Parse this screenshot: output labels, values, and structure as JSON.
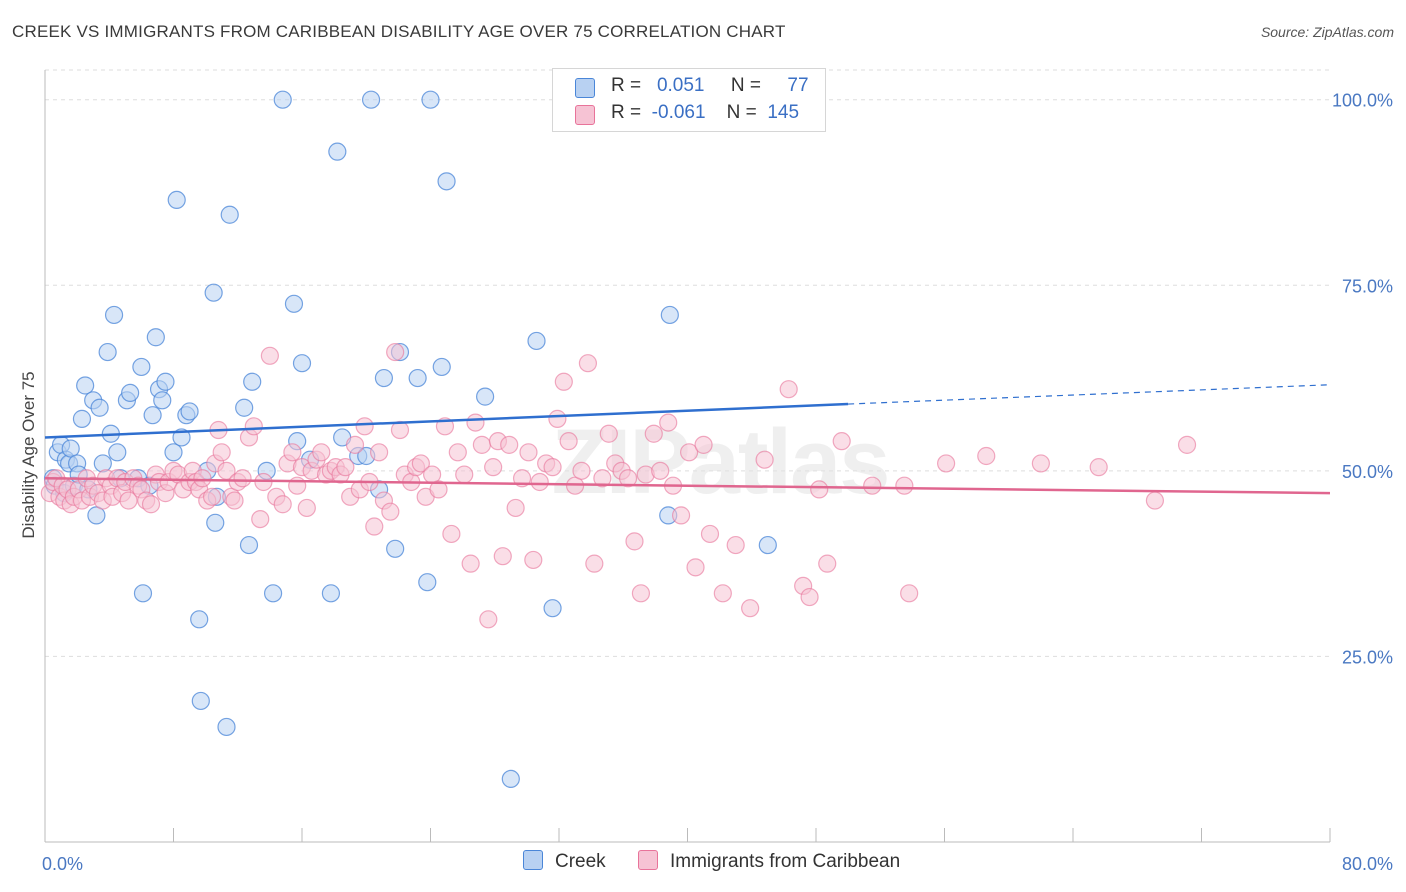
{
  "title": "CREEK VS IMMIGRANTS FROM CARIBBEAN DISABILITY AGE OVER 75 CORRELATION CHART",
  "source": "Source: ZipAtlas.com",
  "watermark": "ZIPatlas",
  "colors": {
    "creek": "#4a86d8",
    "creek_fill": "#b8d1f2",
    "caribbean": "#e8739a",
    "caribbean_fill": "#f6c3d4",
    "axis_label": "#4a78c2",
    "grid": "#dddddd"
  },
  "legend": {
    "rows": [
      {
        "r_label": "R =",
        "r_value": "0.051",
        "n_label": "N =",
        "n_value": "77"
      },
      {
        "r_label": "R =",
        "r_value": "-0.061",
        "n_label": "N =",
        "n_value": "145"
      }
    ]
  },
  "chart_data": {
    "type": "scatter",
    "title": "CREEK VS IMMIGRANTS FROM CARIBBEAN DISABILITY AGE OVER 75 CORRELATION CHART",
    "xlabel": "",
    "ylabel": "Disability Age Over 75",
    "xlim": [
      0,
      80
    ],
    "ylim": [
      0,
      104
    ],
    "x_tick_labels": [
      "0.0%",
      "80.0%"
    ],
    "y_ticks": [
      25,
      50,
      75,
      100
    ],
    "y_tick_labels": [
      "25.0%",
      "50.0%",
      "75.0%",
      "100.0%"
    ],
    "grid": "horizontal dashed",
    "legend_position": "top-center",
    "series": [
      {
        "name": "Creek",
        "r": 0.051,
        "n": 77,
        "trend": {
          "x": [
            0,
            50,
            80
          ],
          "y": [
            54.5,
            59.0,
            61.6
          ],
          "solid_until_x": 50
        },
        "points": [
          [
            0.5,
            49
          ],
          [
            0.6,
            48
          ],
          [
            0.8,
            52.5
          ],
          [
            1.0,
            53.5
          ],
          [
            1.2,
            47
          ],
          [
            1.3,
            51.5
          ],
          [
            1.5,
            51
          ],
          [
            1.6,
            53
          ],
          [
            1.8,
            48
          ],
          [
            2.0,
            51
          ],
          [
            2.1,
            49.5
          ],
          [
            2.3,
            57
          ],
          [
            2.5,
            61.5
          ],
          [
            2.7,
            47.5
          ],
          [
            3.0,
            59.5
          ],
          [
            3.2,
            44
          ],
          [
            3.4,
            58.5
          ],
          [
            3.6,
            51
          ],
          [
            3.9,
            66
          ],
          [
            4.1,
            55
          ],
          [
            4.3,
            71
          ],
          [
            4.5,
            52.5
          ],
          [
            4.7,
            49
          ],
          [
            5.1,
            59.5
          ],
          [
            5.3,
            60.5
          ],
          [
            5.8,
            49
          ],
          [
            6.0,
            64
          ],
          [
            6.1,
            33.5
          ],
          [
            6.5,
            48
          ],
          [
            6.7,
            57.5
          ],
          [
            6.9,
            68
          ],
          [
            7.1,
            61
          ],
          [
            7.3,
            59.5
          ],
          [
            7.5,
            62
          ],
          [
            8.0,
            52.5
          ],
          [
            8.2,
            86.5
          ],
          [
            8.5,
            54.5
          ],
          [
            8.8,
            57.5
          ],
          [
            9.0,
            58
          ],
          [
            9.6,
            30
          ],
          [
            9.7,
            19
          ],
          [
            10.1,
            50
          ],
          [
            10.5,
            74
          ],
          [
            10.6,
            43
          ],
          [
            10.7,
            46.5
          ],
          [
            11.3,
            15.5
          ],
          [
            11.5,
            84.5
          ],
          [
            12.4,
            58.5
          ],
          [
            12.7,
            40
          ],
          [
            12.9,
            62
          ],
          [
            13.8,
            50
          ],
          [
            14.2,
            33.5
          ],
          [
            14.8,
            100
          ],
          [
            15.5,
            72.5
          ],
          [
            15.7,
            54
          ],
          [
            16.0,
            64.5
          ],
          [
            16.5,
            51.5
          ],
          [
            17.8,
            33.5
          ],
          [
            18.2,
            93
          ],
          [
            18.5,
            54.5
          ],
          [
            19.5,
            52
          ],
          [
            20.0,
            52
          ],
          [
            20.3,
            100
          ],
          [
            20.8,
            47.5
          ],
          [
            21.1,
            62.5
          ],
          [
            21.8,
            39.5
          ],
          [
            22.1,
            66
          ],
          [
            23.2,
            62.5
          ],
          [
            23.8,
            35
          ],
          [
            24.0,
            100
          ],
          [
            24.7,
            64
          ],
          [
            25.0,
            89
          ],
          [
            27.4,
            60
          ],
          [
            29.0,
            8.5
          ],
          [
            30.6,
            67.5
          ],
          [
            31.6,
            31.5
          ],
          [
            38.8,
            44
          ],
          [
            38.9,
            71
          ],
          [
            45.0,
            40
          ]
        ]
      },
      {
        "name": "Immigrants from Caribbean",
        "r": -0.061,
        "n": 145,
        "trend": {
          "x": [
            0,
            80
          ],
          "y": [
            49.0,
            47.0
          ]
        },
        "points": [
          [
            0.3,
            47
          ],
          [
            0.5,
            48.5
          ],
          [
            0.7,
            49
          ],
          [
            0.9,
            46.5
          ],
          [
            1.1,
            48
          ],
          [
            1.2,
            46
          ],
          [
            1.4,
            47.5
          ],
          [
            1.6,
            45.5
          ],
          [
            1.8,
            46.5
          ],
          [
            2.1,
            47.5
          ],
          [
            2.3,
            46
          ],
          [
            2.6,
            49
          ],
          [
            2.8,
            46.5
          ],
          [
            3.0,
            48
          ],
          [
            3.3,
            47
          ],
          [
            3.6,
            46
          ],
          [
            3.8,
            49
          ],
          [
            4.1,
            48
          ],
          [
            4.2,
            46.5
          ],
          [
            4.5,
            49
          ],
          [
            4.8,
            47
          ],
          [
            5.0,
            48.5
          ],
          [
            5.2,
            46
          ],
          [
            5.5,
            49
          ],
          [
            5.8,
            48
          ],
          [
            6.0,
            47.5
          ],
          [
            6.3,
            46
          ],
          [
            6.6,
            45.5
          ],
          [
            6.9,
            49.5
          ],
          [
            7.1,
            48.5
          ],
          [
            7.5,
            47
          ],
          [
            7.7,
            48.5
          ],
          [
            8.0,
            50
          ],
          [
            8.3,
            49.5
          ],
          [
            8.6,
            47.5
          ],
          [
            9.0,
            48.5
          ],
          [
            9.2,
            50
          ],
          [
            9.4,
            48.5
          ],
          [
            9.6,
            47.5
          ],
          [
            9.8,
            49
          ],
          [
            10.1,
            46
          ],
          [
            10.4,
            46.5
          ],
          [
            10.6,
            51
          ],
          [
            10.8,
            55.5
          ],
          [
            11.0,
            52.5
          ],
          [
            11.3,
            50
          ],
          [
            11.6,
            46.5
          ],
          [
            11.8,
            46
          ],
          [
            12.0,
            48.5
          ],
          [
            12.3,
            49
          ],
          [
            12.7,
            54.5
          ],
          [
            13.0,
            56
          ],
          [
            13.4,
            43.5
          ],
          [
            13.6,
            48.5
          ],
          [
            14.0,
            65.5
          ],
          [
            14.4,
            46.5
          ],
          [
            14.8,
            45.5
          ],
          [
            15.1,
            51
          ],
          [
            15.4,
            52.5
          ],
          [
            15.7,
            48
          ],
          [
            16.0,
            50.5
          ],
          [
            16.3,
            45
          ],
          [
            16.6,
            50
          ],
          [
            16.9,
            51.5
          ],
          [
            17.2,
            52.5
          ],
          [
            17.5,
            49.5
          ],
          [
            17.8,
            50
          ],
          [
            18.1,
            50.5
          ],
          [
            18.4,
            49.5
          ],
          [
            18.7,
            50.5
          ],
          [
            19.0,
            46.5
          ],
          [
            19.3,
            53.5
          ],
          [
            19.6,
            47.5
          ],
          [
            19.9,
            56
          ],
          [
            20.2,
            48.5
          ],
          [
            20.5,
            42.5
          ],
          [
            20.8,
            52.5
          ],
          [
            21.1,
            46
          ],
          [
            21.5,
            44.5
          ],
          [
            21.8,
            66
          ],
          [
            22.1,
            55.5
          ],
          [
            22.4,
            49.5
          ],
          [
            22.8,
            48.5
          ],
          [
            23.1,
            50.5
          ],
          [
            23.4,
            51
          ],
          [
            23.7,
            46.5
          ],
          [
            24.1,
            49.5
          ],
          [
            24.5,
            47.5
          ],
          [
            24.9,
            56
          ],
          [
            25.3,
            41.5
          ],
          [
            25.7,
            52.5
          ],
          [
            26.1,
            49.5
          ],
          [
            26.5,
            37.5
          ],
          [
            26.8,
            56.5
          ],
          [
            27.2,
            53.5
          ],
          [
            27.6,
            30
          ],
          [
            27.9,
            50.5
          ],
          [
            28.2,
            54
          ],
          [
            28.5,
            38.5
          ],
          [
            28.9,
            53.5
          ],
          [
            29.3,
            45
          ],
          [
            29.7,
            49
          ],
          [
            30.1,
            52.5
          ],
          [
            30.4,
            38
          ],
          [
            30.8,
            48.5
          ],
          [
            31.2,
            51
          ],
          [
            31.6,
            50.5
          ],
          [
            31.9,
            57
          ],
          [
            32.3,
            62
          ],
          [
            32.6,
            54
          ],
          [
            33.0,
            48
          ],
          [
            33.4,
            50
          ],
          [
            33.8,
            64.5
          ],
          [
            34.2,
            37.5
          ],
          [
            34.7,
            49
          ],
          [
            35.1,
            55
          ],
          [
            35.5,
            51
          ],
          [
            35.9,
            50
          ],
          [
            36.3,
            49
          ],
          [
            36.7,
            40.5
          ],
          [
            37.1,
            33.5
          ],
          [
            37.4,
            49.5
          ],
          [
            37.9,
            55
          ],
          [
            38.3,
            50
          ],
          [
            38.8,
            56.5
          ],
          [
            39.1,
            48
          ],
          [
            39.6,
            44
          ],
          [
            40.1,
            52.5
          ],
          [
            40.5,
            37
          ],
          [
            41.0,
            53.5
          ],
          [
            41.4,
            41.5
          ],
          [
            42.2,
            33.5
          ],
          [
            43.0,
            40
          ],
          [
            43.9,
            31.5
          ],
          [
            44.8,
            51.5
          ],
          [
            46.3,
            61
          ],
          [
            47.2,
            34.5
          ],
          [
            47.6,
            33
          ],
          [
            48.2,
            47.5
          ],
          [
            48.7,
            37.5
          ],
          [
            49.6,
            54
          ],
          [
            51.5,
            48
          ],
          [
            53.5,
            48
          ],
          [
            53.8,
            33.5
          ],
          [
            56.1,
            51
          ],
          [
            58.6,
            52
          ],
          [
            62.0,
            51
          ],
          [
            65.6,
            50.5
          ],
          [
            69.1,
            46
          ],
          [
            71.1,
            53.5
          ]
        ]
      }
    ]
  },
  "bottom_legend": [
    "Creek",
    "Immigrants from Caribbean"
  ]
}
